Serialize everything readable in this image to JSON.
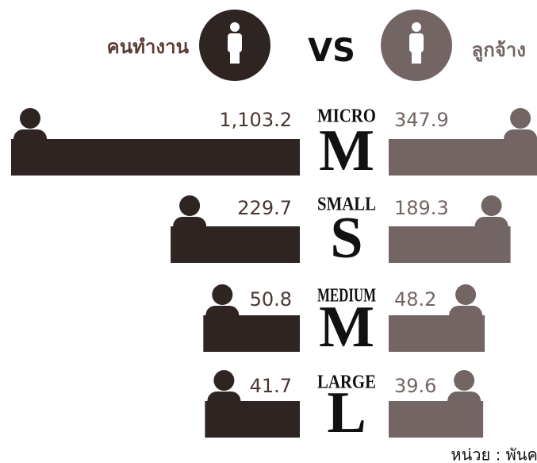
{
  "chart_data": {
    "type": "butterfly-bar",
    "title": "VS",
    "categories": [
      "MICRO",
      "SMALL",
      "MEDIUM",
      "LARGE"
    ],
    "letters": [
      "M",
      "S",
      "M",
      "L"
    ],
    "series": [
      {
        "name": "คนทำงาน",
        "color": "#2e2523",
        "values": [
          1103.2,
          229.7,
          50.8,
          41.7
        ],
        "value_labels": [
          "1,103.2",
          "229.7",
          "50.8",
          "41.7"
        ]
      },
      {
        "name": "ลูกจ้าง",
        "color": "#736563",
        "values": [
          347.9,
          189.3,
          48.2,
          39.6
        ],
        "value_labels": [
          "347.9",
          "189.3",
          "48.2",
          "39.6"
        ]
      }
    ],
    "note": "หน่วย : พันคน"
  }
}
